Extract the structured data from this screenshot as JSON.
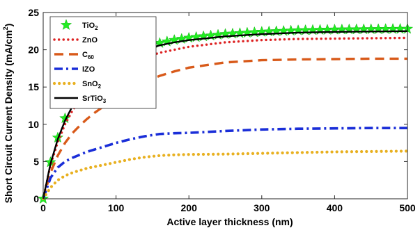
{
  "chart_data": {
    "type": "line",
    "xlabel": "Active layer thickness (nm)",
    "ylabel_main": "Short Circuit Current Density (mA/cm",
    "ylabel_sup": "2",
    "ylabel_end": ")",
    "xlim": [
      0,
      500
    ],
    "ylim": [
      0,
      25
    ],
    "xticks": [
      "0",
      "100",
      "200",
      "300",
      "400",
      "500"
    ],
    "yticks": [
      "0",
      "5",
      "10",
      "15",
      "20",
      "25"
    ],
    "grid": false,
    "legend_position": "top-left",
    "x": [
      0,
      10,
      20,
      30,
      40,
      50,
      60,
      70,
      80,
      90,
      100,
      120,
      140,
      160,
      180,
      200,
      250,
      300,
      350,
      400,
      450,
      500
    ],
    "series": [
      {
        "name": "TiO",
        "sub": "2",
        "style": "star",
        "color": "#22ee22",
        "values": [
          0,
          4.9,
          8.2,
          10.8,
          12.8,
          14.3,
          15.5,
          16.5,
          17.3,
          18.0,
          18.6,
          19.6,
          20.4,
          20.9,
          21.3,
          21.6,
          22.1,
          22.4,
          22.6,
          22.7,
          22.75,
          22.8
        ]
      },
      {
        "name": "ZnO",
        "sub": "",
        "style": "dotted",
        "color": "#dd2222",
        "values": [
          0,
          4.5,
          7.6,
          10.0,
          11.8,
          13.2,
          14.3,
          15.2,
          15.9,
          16.6,
          17.2,
          18.2,
          19.0,
          19.6,
          20.0,
          20.4,
          21.0,
          21.3,
          21.45,
          21.5,
          21.55,
          21.6
        ]
      },
      {
        "name": "C",
        "sub": "60",
        "style": "dashed",
        "color": "#d85a1a",
        "values": [
          0,
          3.5,
          5.8,
          7.5,
          8.8,
          9.8,
          10.7,
          11.5,
          12.2,
          12.9,
          13.5,
          14.7,
          15.7,
          16.5,
          17.1,
          17.6,
          18.3,
          18.6,
          18.7,
          18.75,
          18.8,
          18.8
        ]
      },
      {
        "name": "IZO",
        "sub": "",
        "style": "dashdot",
        "color": "#1a2ed8",
        "values": [
          0,
          2.8,
          4.2,
          5.0,
          5.5,
          5.9,
          6.3,
          6.6,
          6.9,
          7.2,
          7.5,
          8.0,
          8.4,
          8.7,
          8.8,
          8.85,
          9.1,
          9.3,
          9.4,
          9.45,
          9.5,
          9.5
        ]
      },
      {
        "name": "SnO",
        "sub": "2",
        "style": "dotted-thick",
        "color": "#e8b020",
        "values": [
          0,
          1.5,
          2.5,
          3.1,
          3.5,
          3.8,
          4.1,
          4.3,
          4.5,
          4.7,
          4.9,
          5.3,
          5.6,
          5.8,
          5.9,
          5.95,
          6.0,
          6.1,
          6.2,
          6.3,
          6.35,
          6.4
        ]
      },
      {
        "name": "SrTiO",
        "sub": "3",
        "style": "solid",
        "color": "#000000",
        "values": [
          0,
          4.7,
          8.0,
          10.5,
          12.4,
          13.9,
          15.1,
          16.1,
          16.9,
          17.6,
          18.2,
          19.2,
          20.0,
          20.6,
          21.0,
          21.3,
          21.8,
          22.1,
          22.3,
          22.4,
          22.45,
          22.5
        ]
      }
    ]
  }
}
